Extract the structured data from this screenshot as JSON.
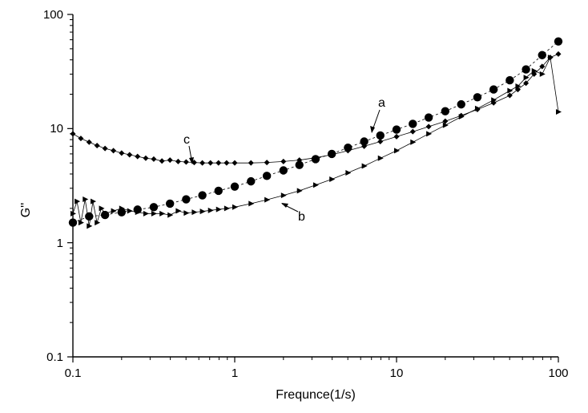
{
  "chart_data": {
    "type": "scatter",
    "xlabel": "Frequnce(1/s)",
    "ylabel": "G''",
    "xscale": "log",
    "yscale": "log",
    "xlim": [
      0.1,
      100
    ],
    "ylim": [
      0.1,
      100
    ],
    "x_ticks": [
      "0.1",
      "1",
      "10",
      "100"
    ],
    "y_ticks": [
      "0.1",
      "1",
      "10",
      "100"
    ],
    "grid": false,
    "legend": "none",
    "annotations": [
      {
        "text": "a",
        "series": "a"
      },
      {
        "text": "b",
        "series": "b"
      },
      {
        "text": "c",
        "series": "c"
      }
    ],
    "series": [
      {
        "name": "a",
        "marker": "circle",
        "color": "#000000",
        "x": [
          0.1,
          0.126,
          0.158,
          0.2,
          0.251,
          0.316,
          0.398,
          0.501,
          0.631,
          0.794,
          1.0,
          1.26,
          1.58,
          2.0,
          2.51,
          3.16,
          3.98,
          5.01,
          6.31,
          7.94,
          10.0,
          12.6,
          15.8,
          20.0,
          25.1,
          31.6,
          39.8,
          50.1,
          63.1,
          79.4,
          100
        ],
        "y": [
          1.5,
          1.7,
          1.75,
          1.85,
          1.95,
          2.05,
          2.2,
          2.4,
          2.6,
          2.85,
          3.1,
          3.45,
          3.85,
          4.3,
          4.8,
          5.4,
          6.0,
          6.8,
          7.7,
          8.7,
          9.8,
          11.0,
          12.5,
          14.2,
          16.3,
          18.8,
          22.0,
          26.5,
          33.0,
          44.0,
          58.0
        ]
      },
      {
        "name": "b",
        "marker": "triangle-right",
        "color": "#000000",
        "x": [
          0.1,
          0.106,
          0.112,
          0.119,
          0.126,
          0.133,
          0.141,
          0.15,
          0.158,
          0.178,
          0.2,
          0.224,
          0.251,
          0.282,
          0.316,
          0.355,
          0.398,
          0.447,
          0.501,
          0.562,
          0.631,
          0.708,
          0.794,
          0.891,
          1.0,
          1.26,
          1.58,
          2.0,
          2.51,
          3.16,
          3.98,
          5.01,
          6.31,
          7.94,
          10.0,
          12.6,
          15.8,
          20.0,
          25.1,
          31.6,
          39.8,
          50.1,
          56.2,
          63.1,
          70.8,
          79.4,
          89.1,
          100
        ],
        "y": [
          1.8,
          2.3,
          1.5,
          2.4,
          1.4,
          2.3,
          1.5,
          2.0,
          1.8,
          1.9,
          2.0,
          1.9,
          1.85,
          1.8,
          1.8,
          1.8,
          1.75,
          1.9,
          1.82,
          1.85,
          1.88,
          1.92,
          1.96,
          2.0,
          2.05,
          2.2,
          2.38,
          2.6,
          2.85,
          3.2,
          3.6,
          4.1,
          4.7,
          5.5,
          6.4,
          7.6,
          9.0,
          10.7,
          12.7,
          15.0,
          17.8,
          21.5,
          23.5,
          28.0,
          32.0,
          30.0,
          42.0,
          14.0
        ]
      },
      {
        "name": "c",
        "marker": "diamond",
        "color": "#000000",
        "x": [
          0.1,
          0.112,
          0.126,
          0.141,
          0.158,
          0.178,
          0.2,
          0.224,
          0.251,
          0.282,
          0.316,
          0.355,
          0.398,
          0.447,
          0.501,
          0.562,
          0.631,
          0.708,
          0.794,
          0.891,
          1.0,
          1.26,
          1.58,
          2.0,
          2.51,
          3.16,
          3.98,
          5.01,
          6.31,
          7.94,
          10.0,
          12.6,
          15.8,
          20.0,
          25.1,
          31.6,
          39.8,
          50.1,
          56.2,
          63.1,
          70.8,
          79.4,
          89.1,
          100
        ],
        "y": [
          9.0,
          8.2,
          7.6,
          7.1,
          6.7,
          6.4,
          6.1,
          5.9,
          5.7,
          5.5,
          5.4,
          5.2,
          5.3,
          5.15,
          5.1,
          5.05,
          5.0,
          5.0,
          5.0,
          5.0,
          5.0,
          5.0,
          5.05,
          5.15,
          5.3,
          5.55,
          5.9,
          6.4,
          7.0,
          7.7,
          8.5,
          9.4,
          10.4,
          11.6,
          13.0,
          14.7,
          16.8,
          19.5,
          22.0,
          25.0,
          30.0,
          35.0,
          42.0,
          45.0
        ]
      }
    ]
  }
}
